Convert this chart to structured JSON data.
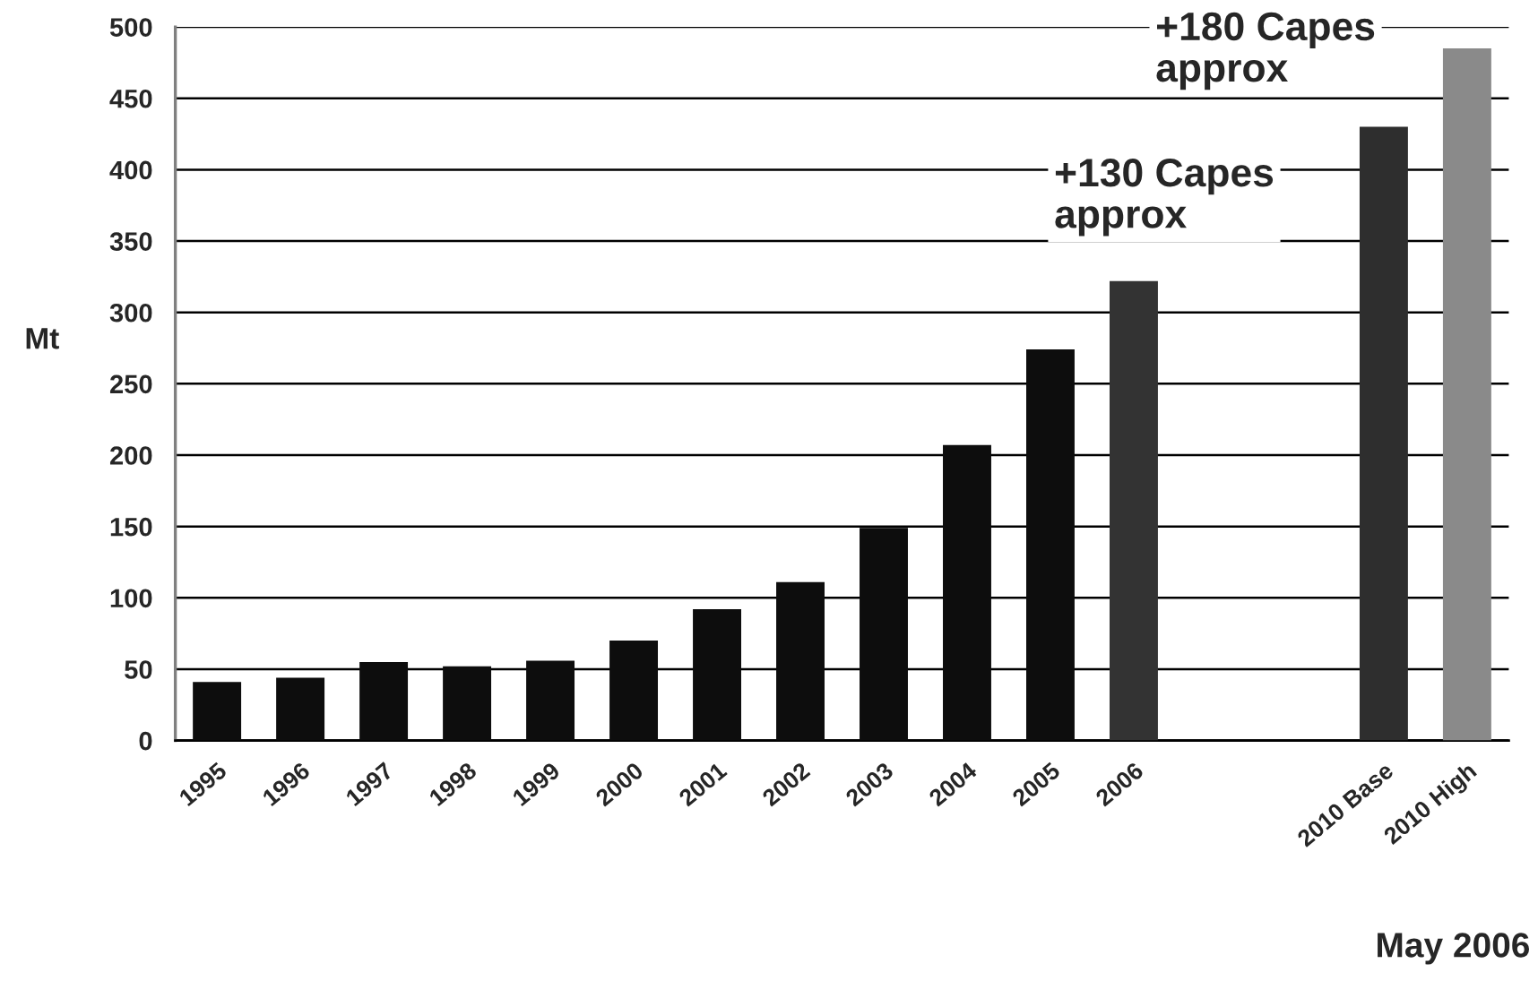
{
  "chart_data": {
    "type": "bar",
    "categories": [
      "1995",
      "1996",
      "1997",
      "1998",
      "1999",
      "2000",
      "2001",
      "2002",
      "2003",
      "2004",
      "2005",
      "2006",
      null,
      null,
      "2010 Base",
      "2010 High"
    ],
    "values": [
      41,
      44,
      55,
      52,
      56,
      70,
      92,
      111,
      149,
      207,
      274,
      322,
      null,
      null,
      430,
      485
    ],
    "colors": [
      "#0d0d0d",
      "#0d0d0d",
      "#0d0d0d",
      "#0d0d0d",
      "#0d0d0d",
      "#0d0d0d",
      "#0d0d0d",
      "#0d0d0d",
      "#0d0d0d",
      "#0d0d0d",
      "#0d0d0d",
      "#333333",
      null,
      null,
      "#2e2e2e",
      "#8a8a8a"
    ],
    "ylabel": "Mt",
    "ylim": [
      0,
      500
    ],
    "yticks": [
      0,
      50,
      100,
      150,
      200,
      250,
      300,
      350,
      400,
      450,
      500
    ],
    "grid": "y",
    "annotations": [
      "+130 Capes\napprox",
      "+180 Capes\napprox",
      "May 2006"
    ]
  }
}
